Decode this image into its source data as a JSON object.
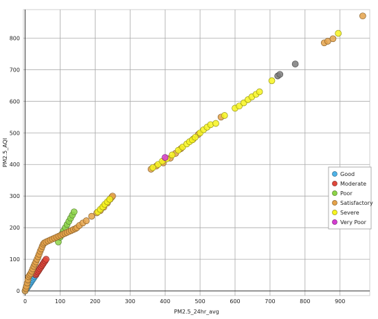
{
  "chart_data": {
    "type": "scatter",
    "xlabel": "PM2.5_24hr_avg",
    "ylabel": "PM2.5_AQI",
    "xlim": [
      -5,
      985
    ],
    "ylim": [
      -15,
      890
    ],
    "x_ticks": [
      0,
      100,
      200,
      300,
      400,
      500,
      600,
      700,
      800,
      900
    ],
    "y_ticks": [
      0,
      100,
      200,
      300,
      400,
      500,
      600,
      700,
      800
    ],
    "grid": true,
    "legend_position": "right",
    "series": [
      {
        "name": "Good",
        "color": "#4fb3e8",
        "points": [
          [
            0,
            0
          ],
          [
            3,
            5
          ],
          [
            6,
            10
          ],
          [
            9,
            15
          ],
          [
            12,
            20
          ],
          [
            15,
            25
          ],
          [
            18,
            30
          ],
          [
            21,
            35
          ],
          [
            24,
            40
          ],
          [
            27,
            45
          ],
          [
            30,
            50
          ]
        ]
      },
      {
        "name": "Moderate",
        "color": "#e0483b",
        "points": [
          [
            31,
            51
          ],
          [
            33,
            55
          ],
          [
            36,
            60
          ],
          [
            39,
            65
          ],
          [
            42,
            70
          ],
          [
            45,
            75
          ],
          [
            48,
            80
          ],
          [
            51,
            85
          ],
          [
            54,
            90
          ],
          [
            57,
            95
          ],
          [
            60,
            100
          ]
        ]
      },
      {
        "name": "Poor",
        "color": "#8cd448",
        "points": [
          [
            95,
            155
          ],
          [
            100,
            170
          ],
          [
            105,
            180
          ],
          [
            110,
            190
          ],
          [
            115,
            200
          ],
          [
            120,
            210
          ],
          [
            125,
            220
          ],
          [
            130,
            230
          ],
          [
            135,
            240
          ],
          [
            140,
            250
          ]
        ]
      },
      {
        "name": "Satisfactory",
        "color": "#e4a24a",
        "points": [
          [
            0,
            0
          ],
          [
            2,
            8
          ],
          [
            4,
            15
          ],
          [
            6,
            25
          ],
          [
            8,
            35
          ],
          [
            10,
            45
          ],
          [
            13,
            50
          ],
          [
            16,
            55
          ],
          [
            19,
            62
          ],
          [
            22,
            70
          ],
          [
            25,
            78
          ],
          [
            28,
            85
          ],
          [
            31,
            92
          ],
          [
            34,
            100
          ],
          [
            37,
            108
          ],
          [
            40,
            116
          ],
          [
            43,
            125
          ],
          [
            46,
            133
          ],
          [
            49,
            141
          ],
          [
            52,
            148
          ],
          [
            55,
            152
          ],
          [
            60,
            155
          ],
          [
            66,
            158
          ],
          [
            72,
            161
          ],
          [
            78,
            164
          ],
          [
            84,
            167
          ],
          [
            90,
            170
          ],
          [
            96,
            173
          ],
          [
            102,
            176
          ],
          [
            108,
            179
          ],
          [
            114,
            182
          ],
          [
            120,
            185
          ],
          [
            126,
            188
          ],
          [
            132,
            191
          ],
          [
            138,
            194
          ],
          [
            144,
            197
          ],
          [
            148,
            200
          ],
          [
            155,
            207
          ],
          [
            165,
            215
          ],
          [
            175,
            222
          ],
          [
            190,
            236
          ],
          [
            205,
            247
          ],
          [
            215,
            254
          ],
          [
            225,
            265
          ],
          [
            235,
            278
          ],
          [
            243,
            290
          ],
          [
            248,
            297
          ],
          [
            250,
            300
          ],
          [
            360,
            385
          ],
          [
            375,
            395
          ],
          [
            395,
            405
          ],
          [
            415,
            420
          ],
          [
            430,
            435
          ],
          [
            445,
            450
          ],
          [
            480,
            480
          ],
          [
            495,
            495
          ],
          [
            560,
            550
          ],
          [
            855,
            785
          ],
          [
            865,
            790
          ],
          [
            880,
            798
          ],
          [
            965,
            870
          ]
        ]
      },
      {
        "name": "Severe",
        "color": "#f7f520",
        "points": [
          [
            208,
            250
          ],
          [
            215,
            258
          ],
          [
            222,
            266
          ],
          [
            228,
            274
          ],
          [
            235,
            282
          ],
          [
            242,
            290
          ],
          [
            365,
            390
          ],
          [
            380,
            400
          ],
          [
            392,
            410
          ],
          [
            405,
            418
          ],
          [
            420,
            430
          ],
          [
            438,
            445
          ],
          [
            450,
            455
          ],
          [
            462,
            465
          ],
          [
            470,
            472
          ],
          [
            478,
            478
          ],
          [
            486,
            486
          ],
          [
            500,
            500
          ],
          [
            510,
            510
          ],
          [
            520,
            518
          ],
          [
            530,
            526
          ],
          [
            545,
            530
          ],
          [
            570,
            555
          ],
          [
            600,
            578
          ],
          [
            612,
            585
          ],
          [
            625,
            595
          ],
          [
            637,
            605
          ],
          [
            648,
            614
          ],
          [
            660,
            622
          ],
          [
            670,
            630
          ],
          [
            705,
            665
          ],
          [
            895,
            815
          ]
        ]
      },
      {
        "name": "Very Poor",
        "color": "#d43cd0",
        "points": [
          [
            400,
            422
          ]
        ]
      },
      {
        "name": "",
        "color": "#7d7d7d",
        "points": [
          [
            722,
            680
          ],
          [
            728,
            685
          ],
          [
            772,
            718
          ]
        ]
      }
    ]
  }
}
